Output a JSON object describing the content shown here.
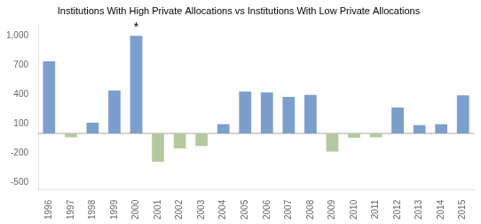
{
  "chart_data": {
    "type": "bar",
    "title": "Institutions With High Private Allocations vs Institutions With Low Private Allocations",
    "categories": [
      "1996",
      "1997",
      "1998",
      "1999",
      "2000",
      "2001",
      "2002",
      "2003",
      "2004",
      "2005",
      "2006",
      "2007",
      "2008",
      "2009",
      "2010",
      "2011",
      "2012",
      "2013",
      "2014",
      "2015"
    ],
    "values": [
      740,
      -40,
      110,
      440,
      1000,
      -290,
      -155,
      -130,
      95,
      430,
      420,
      375,
      395,
      -185,
      -45,
      -40,
      265,
      85,
      95,
      390
    ],
    "colors": [
      "#7b9fcc",
      "#b5c9a0",
      "#7b9fcc",
      "#7b9fcc",
      "#7b9fcc",
      "#b5c9a0",
      "#b5c9a0",
      "#b5c9a0",
      "#7b9fcc",
      "#7b9fcc",
      "#7b9fcc",
      "#7b9fcc",
      "#7b9fcc",
      "#b5c9a0",
      "#b5c9a0",
      "#b5c9a0",
      "#7b9fcc",
      "#7b9fcc",
      "#7b9fcc",
      "#7b9fcc"
    ],
    "ylim": [
      -580,
      1120
    ],
    "yticks": [
      -500,
      -200,
      100,
      400,
      700,
      {
        "value": 1000,
        "label": "1,000"
      }
    ],
    "annotations": [
      {
        "text": "*",
        "x": "2000",
        "y": 1000
      }
    ],
    "grid": false
  }
}
